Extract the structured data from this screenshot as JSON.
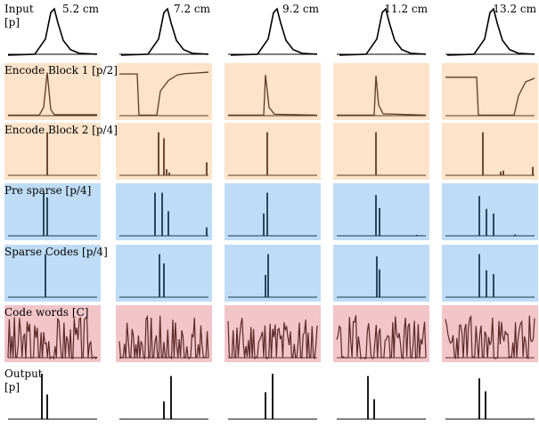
{
  "chart_data": {
    "type": "line",
    "title": "",
    "columns": [
      "5.2 cm",
      "7.2 cm",
      "9.2 cm",
      "11.2 cm",
      "13.2 cm"
    ],
    "rows": [
      {
        "key": "input",
        "label": "Input\n[p]",
        "bg": "#ffffff",
        "line": "#000000",
        "kind": "pulse",
        "values": [
          [
            0,
            0
          ],
          [
            0.3,
            0.02
          ],
          [
            0.42,
            0.35
          ],
          [
            0.48,
            0.92
          ],
          [
            0.52,
            1.0
          ],
          [
            0.56,
            0.7
          ],
          [
            0.62,
            0.32
          ],
          [
            0.7,
            0.12
          ],
          [
            0.8,
            0.04
          ],
          [
            1,
            0.02
          ]
        ]
      },
      {
        "key": "encode1",
        "label": "Encode Block 1 [p/2]",
        "bg": "#fde3c9",
        "line": "#5c3a28",
        "kind": "trace"
      },
      {
        "key": "encode2",
        "label": "Encode Block 2 [p/4]",
        "bg": "#fde3c9",
        "line": "#5c3a28",
        "kind": "spikes"
      },
      {
        "key": "presparse",
        "label": "Pre sparse [p/4]",
        "bg": "#bedcf5",
        "line": "#1a3550",
        "kind": "spikes"
      },
      {
        "key": "sparse",
        "label": "Sparse Codes [p/4]",
        "bg": "#bedcf5",
        "line": "#1a3550",
        "kind": "spikes"
      },
      {
        "key": "codewords",
        "label": "Code words [C]",
        "bg": "#f2c5c8",
        "line": "#5a2a28",
        "kind": "dense"
      },
      {
        "key": "output",
        "label": "Output\n[p]",
        "bg": "#ffffff",
        "line": "#000000",
        "kind": "spikes"
      }
    ],
    "panels": {
      "input": [
        {
          "shift": 0.0
        },
        {
          "shift": 0.02
        },
        {
          "shift": 0.03
        },
        {
          "shift": 0.03
        },
        {
          "shift": 0.02
        }
      ],
      "encode1": [
        [
          [
            0,
            0.03
          ],
          [
            0.35,
            0.03
          ],
          [
            0.4,
            0.2
          ],
          [
            0.44,
            0.95
          ],
          [
            0.48,
            0.15
          ],
          [
            0.52,
            0.04
          ],
          [
            1,
            0.04
          ]
        ],
        [
          [
            0,
            0.92
          ],
          [
            0.2,
            0.92
          ],
          [
            0.22,
            0.03
          ],
          [
            0.42,
            0.03
          ],
          [
            0.46,
            0.55
          ],
          [
            0.55,
            0.78
          ],
          [
            0.65,
            0.9
          ],
          [
            0.75,
            0.93
          ],
          [
            0.85,
            0.94
          ],
          [
            1,
            0.96
          ]
        ],
        [
          [
            0,
            0.03
          ],
          [
            0.4,
            0.03
          ],
          [
            0.42,
            0.9
          ],
          [
            0.46,
            0.2
          ],
          [
            0.52,
            0.05
          ],
          [
            1,
            0.03
          ]
        ],
        [
          [
            0,
            0.03
          ],
          [
            0.42,
            0.03
          ],
          [
            0.44,
            0.88
          ],
          [
            0.47,
            0.25
          ],
          [
            0.52,
            0.06
          ],
          [
            1,
            0.03
          ]
        ],
        [
          [
            0,
            0.85
          ],
          [
            0.35,
            0.85
          ],
          [
            0.37,
            0.03
          ],
          [
            0.77,
            0.03
          ],
          [
            0.82,
            0.45
          ],
          [
            0.9,
            0.75
          ],
          [
            1,
            0.83
          ]
        ]
      ],
      "encode2": [
        [
          [
            0.44,
            0.95
          ]
        ],
        [
          [
            0.44,
            0.95
          ],
          [
            0.5,
            0.82
          ],
          [
            0.53,
            0.15
          ],
          [
            0.56,
            0.08
          ],
          [
            0.98,
            0.3
          ]
        ],
        [
          [
            0.44,
            0.95
          ]
        ],
        [
          [
            0.44,
            0.95
          ]
        ],
        [
          [
            0.42,
            0.95
          ],
          [
            0.62,
            0.1
          ],
          [
            0.65,
            0.12
          ],
          [
            0.98,
            0.2
          ]
        ]
      ],
      "presparse": [
        [
          [
            0.4,
            0.95
          ],
          [
            0.44,
            0.85
          ]
        ],
        [
          [
            0.4,
            0.95
          ],
          [
            0.48,
            0.95
          ],
          [
            0.55,
            0.55
          ],
          [
            0.98,
            0.2
          ]
        ],
        [
          [
            0.4,
            0.5
          ],
          [
            0.44,
            0.95
          ]
        ],
        [
          [
            0.44,
            0.9
          ],
          [
            0.48,
            0.62
          ],
          [
            0.9,
            0.04
          ]
        ],
        [
          [
            0.38,
            0.88
          ],
          [
            0.46,
            0.6
          ],
          [
            0.54,
            0.5
          ],
          [
            0.78,
            0.05
          ]
        ]
      ],
      "sparse": [
        [
          [
            0.42,
            0.95
          ]
        ],
        [
          [
            0.45,
            0.95
          ],
          [
            0.5,
            0.75
          ]
        ],
        [
          [
            0.42,
            0.5
          ],
          [
            0.45,
            0.95
          ]
        ],
        [
          [
            0.45,
            0.9
          ],
          [
            0.48,
            0.62
          ]
        ],
        [
          [
            0.38,
            0.95
          ],
          [
            0.46,
            0.6
          ],
          [
            0.54,
            0.52
          ]
        ]
      ],
      "codewords": [
        {
          "seed": 3
        },
        {
          "seed": 7
        },
        {
          "seed": 11
        },
        {
          "seed": 19
        },
        {
          "seed": 23
        }
      ],
      "output": [
        [
          [
            0.38,
            1.0
          ],
          [
            0.44,
            0.55
          ]
        ],
        [
          [
            0.58,
            0.95
          ],
          [
            0.5,
            0.4
          ]
        ],
        [
          [
            0.42,
            0.6
          ],
          [
            0.5,
            1.0
          ]
        ],
        [
          [
            0.35,
            0.95
          ],
          [
            0.42,
            0.45
          ]
        ],
        [
          [
            0.38,
            0.9
          ],
          [
            0.45,
            0.62
          ]
        ]
      ]
    }
  }
}
